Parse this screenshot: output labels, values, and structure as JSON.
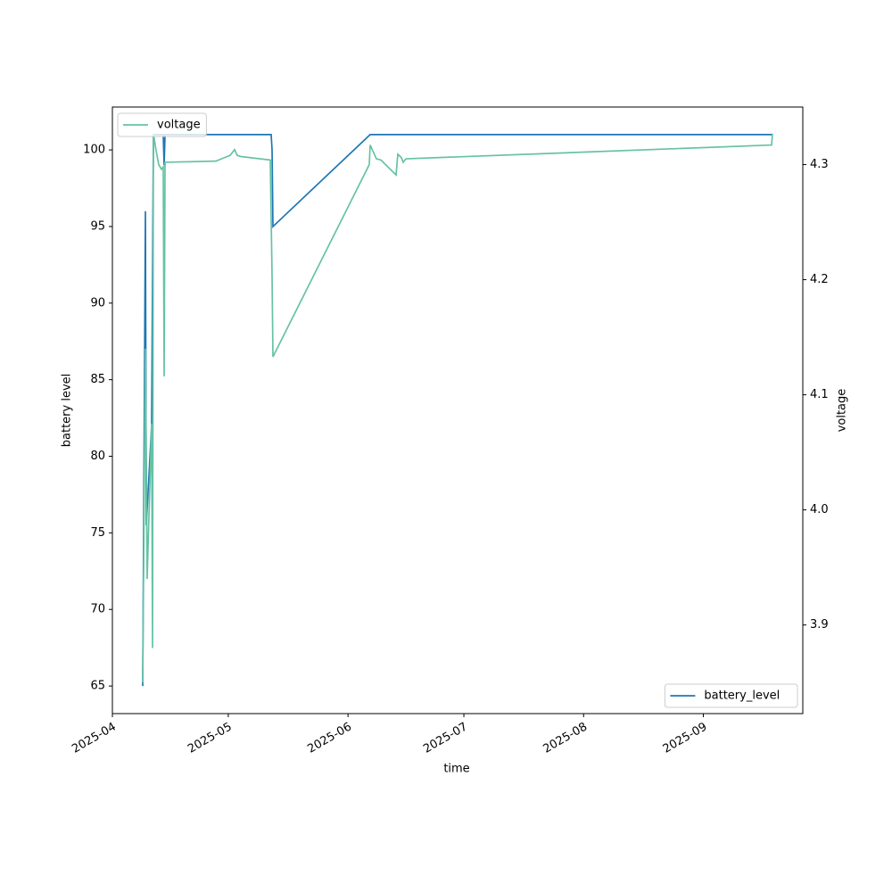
{
  "chart_data": {
    "type": "line",
    "x_label": "time",
    "y_label": "battery level",
    "y2_label": "voltage",
    "xlim": [
      20179,
      20357.75
    ],
    "xticks": [
      {
        "value": 20179,
        "label": "2025-04"
      },
      {
        "value": 20209,
        "label": "2025-05"
      },
      {
        "value": 20240,
        "label": "2025-06"
      },
      {
        "value": 20270,
        "label": "2025-07"
      },
      {
        "value": 20301,
        "label": "2025-08"
      },
      {
        "value": 20332,
        "label": "2025-09"
      }
    ],
    "ylim": [
      63.2,
      102.8
    ],
    "yticks": [
      65,
      70,
      75,
      80,
      85,
      90,
      95,
      100
    ],
    "y2lim": [
      3.823,
      4.35
    ],
    "y2ticks": [
      3.9,
      {
        "value": 4,
        "label": "4.0"
      },
      4.1,
      4.2,
      4.3
    ],
    "series": [
      {
        "name": "battery_level",
        "color": "#1f77b4",
        "axis": "y",
        "legend": "lower right",
        "x": [
          20186.85,
          20187.55,
          20187.78,
          20189.16,
          20189.62,
          20192.16,
          20192.4,
          20192.63,
          20220.11,
          20220.34,
          20220.57,
          20245.74,
          20349.9
        ],
        "values": [
          65,
          96,
          75.5,
          82,
          101,
          101,
          99,
          101,
          101,
          100,
          95,
          101,
          101
        ]
      },
      {
        "name": "voltage",
        "color": "#66c2a5",
        "axis": "y2",
        "legend": "upper left",
        "x": [
          20186.85,
          20187.55,
          20188.0,
          20189.16,
          20189.39,
          20189.62,
          20190.32,
          20191.0,
          20191.7,
          20192.16,
          20192.4,
          20192.63,
          20205.79,
          20209.48,
          20210.64,
          20211.33,
          20212.26,
          20219.88,
          20220.34,
          20220.57,
          20245.51,
          20245.74,
          20247.36,
          20248.52,
          20252.44,
          20252.9,
          20253.83,
          20254.29,
          20254.98,
          20349.67,
          20349.9
        ],
        "values": [
          3.85,
          4.14,
          3.94,
          4.075,
          3.88,
          4.327,
          4.312,
          4.3,
          4.296,
          4.298,
          4.116,
          4.302,
          4.303,
          4.308,
          4.313,
          4.308,
          4.307,
          4.304,
          4.203,
          4.133,
          4.3,
          4.317,
          4.305,
          4.304,
          4.291,
          4.309,
          4.306,
          4.302,
          4.305,
          4.317,
          4.327
        ]
      }
    ]
  }
}
